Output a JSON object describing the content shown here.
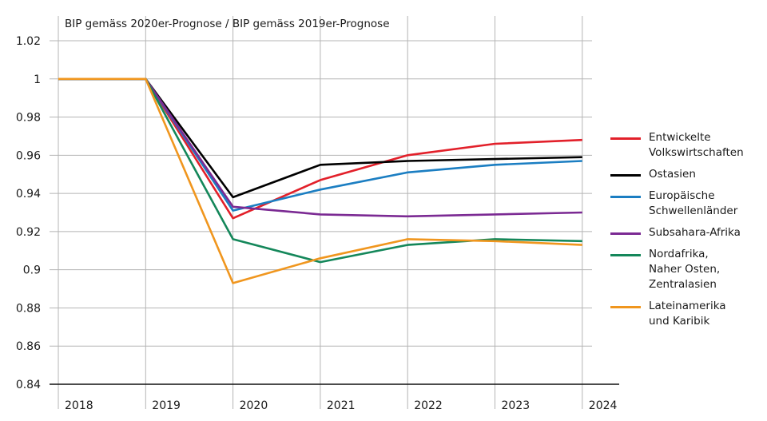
{
  "chart_data": {
    "type": "line",
    "title": "BIP gemäss 2020er-Prognose / BIP gemäss 2019er-Prognose",
    "xlabel": "",
    "ylabel": "",
    "x": [
      "2018",
      "2019",
      "2020",
      "2021",
      "2022",
      "2023",
      "2024"
    ],
    "ylim": [
      0.84,
      1.02
    ],
    "yticks": [
      "1.02",
      "1",
      "0.98",
      "0.96",
      "0.94",
      "0.92",
      "0.9",
      "0.88",
      "0.86",
      "0.84"
    ],
    "ytick_values": [
      1.02,
      1.0,
      0.98,
      0.96,
      0.94,
      0.92,
      0.9,
      0.88,
      0.86,
      0.84
    ],
    "grid": true,
    "legend_position": "right",
    "series": [
      {
        "name": "Entwickelte Volkswirtschaften",
        "label": "Entwickelte\nVolkswirtschaften",
        "color": "#e2202a",
        "values": [
          1.0,
          1.0,
          0.927,
          0.947,
          0.96,
          0.966,
          0.968
        ]
      },
      {
        "name": "Ostasien",
        "label": "Ostasien",
        "color": "#000000",
        "values": [
          1.0,
          1.0,
          0.938,
          0.955,
          0.957,
          0.958,
          0.959
        ]
      },
      {
        "name": "Europäische Schwellenländer",
        "label": "Europäische\nSchwellenländer",
        "color": "#1b7ec2",
        "values": [
          1.0,
          1.0,
          0.931,
          0.942,
          0.951,
          0.955,
          0.957
        ]
      },
      {
        "name": "Subsahara-Afrika",
        "label": "Subsahara-Afrika",
        "color": "#7b2a93",
        "values": [
          1.0,
          1.0,
          0.933,
          0.929,
          0.928,
          0.929,
          0.93
        ]
      },
      {
        "name": "Nordafrika, Naher Osten, Zentralasien",
        "label": "Nordafrika,\nNaher Osten,\nZentralasien",
        "color": "#14875a",
        "values": [
          1.0,
          1.0,
          0.916,
          0.904,
          0.913,
          0.916,
          0.915
        ]
      },
      {
        "name": "Lateinamerika und Karibik",
        "label": "Lateinamerika\nund Karibik",
        "color": "#f0961e",
        "values": [
          1.0,
          1.0,
          0.893,
          0.906,
          0.916,
          0.915,
          0.913
        ]
      }
    ]
  }
}
